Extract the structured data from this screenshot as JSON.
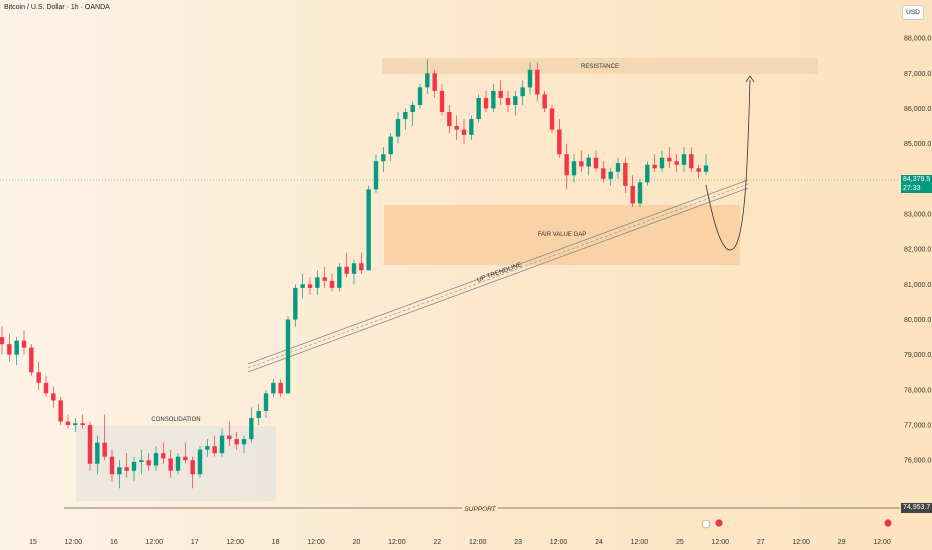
{
  "header": {
    "title": "Bitcoin / U.S. Dollar · 1h · OANDA",
    "currency_button": "USD"
  },
  "colors": {
    "up": "#089981",
    "down": "#f23645",
    "zone": "#f9d2a4",
    "resistance": "#f4d8b3",
    "consolidation": "#ebe6de"
  },
  "price_tags": {
    "current": "84,379.5",
    "countdown": "27:33",
    "support": "74,953.7"
  },
  "annotations": {
    "resistance": "RESISTANCE",
    "fvg": "FAIR VALUE GAP",
    "trendline": "UP TRENDLINE",
    "consolidation": "CONSOLIDATION",
    "support": "SUPPORT"
  },
  "chart_data": {
    "type": "candlestick",
    "title": "Bitcoin / U.S. Dollar · 1h · OANDA",
    "ylim": [
      74300,
      88800
    ],
    "y_ticks": [
      "88,000.0",
      "87,000.0",
      "86,000.0",
      "85,000.0",
      "83,000.0",
      "82,000.0",
      "81,000.0",
      "80,000.0",
      "79,000.0",
      "78,000.0",
      "77,000.0",
      "76,000.0"
    ],
    "y_tick_values": [
      88000,
      87000,
      86000,
      85000,
      83000,
      82000,
      81000,
      80000,
      79000,
      78000,
      77000,
      76000
    ],
    "x_ticks": [
      "15",
      "12:00",
      "16",
      "12:00",
      "17",
      "12:00",
      "18",
      "12:00",
      "20",
      "12:00",
      "22",
      "12:00",
      "23",
      "12:00",
      "24",
      "12:00",
      "25",
      "12:00",
      "27",
      "12:00",
      "29",
      "12:00"
    ],
    "current_price": 84379.5,
    "support_level": 74953.7,
    "resistance_zone": [
      87800,
      88300
    ],
    "fvg_zone": [
      81950,
      83600
    ],
    "series": [
      {
        "values": [
          [
            79500,
            79800,
            79000,
            79300
          ],
          [
            79300,
            79600,
            78800,
            79000
          ],
          [
            79000,
            79500,
            78700,
            79400
          ],
          [
            79400,
            79700,
            79000,
            79200
          ],
          [
            79200,
            79300,
            78400,
            78500
          ],
          [
            78500,
            78800,
            78000,
            78200
          ],
          [
            78200,
            78400,
            77800,
            77900
          ],
          [
            77900,
            78100,
            77500,
            77700
          ],
          [
            77700,
            77800,
            77000,
            77100
          ],
          [
            77100,
            77300,
            76900,
            77000
          ],
          [
            77000,
            77200,
            76800,
            77050
          ],
          [
            77050,
            77300,
            76900,
            77000
          ],
          [
            77000,
            77100,
            75700,
            75900
          ],
          [
            75900,
            76700,
            75600,
            76500
          ],
          [
            76500,
            77300,
            76000,
            76100
          ],
          [
            76100,
            76300,
            75400,
            75600
          ],
          [
            75600,
            76000,
            75200,
            75800
          ],
          [
            75800,
            76200,
            75500,
            75700
          ],
          [
            75700,
            76100,
            75400,
            75950
          ],
          [
            75950,
            76300,
            75600,
            76000
          ],
          [
            76000,
            76200,
            75700,
            75850
          ],
          [
            75850,
            76400,
            75700,
            76200
          ],
          [
            76200,
            76500,
            75900,
            76050
          ],
          [
            76050,
            76300,
            75500,
            75700
          ],
          [
            75700,
            76200,
            75600,
            76100
          ],
          [
            76100,
            76500,
            75900,
            76000
          ],
          [
            76000,
            76100,
            75200,
            75600
          ],
          [
            75600,
            76400,
            75500,
            76300
          ],
          [
            76300,
            76600,
            76100,
            76400
          ],
          [
            76400,
            76700,
            76100,
            76200
          ],
          [
            76200,
            76900,
            76100,
            76700
          ],
          [
            76700,
            77100,
            76400,
            76600
          ],
          [
            76600,
            76800,
            76300,
            76450
          ],
          [
            76450,
            76700,
            76200,
            76600
          ],
          [
            76600,
            77500,
            76500,
            77200
          ],
          [
            77200,
            77600,
            77000,
            77400
          ],
          [
            77400,
            78000,
            77200,
            77900
          ],
          [
            77900,
            78300,
            77800,
            78200
          ],
          [
            78200,
            78300,
            77800,
            77900
          ],
          [
            77900,
            80100,
            77900,
            80000
          ],
          [
            80000,
            81000,
            79800,
            80900
          ],
          [
            80900,
            81300,
            80600,
            81000
          ],
          [
            81000,
            81200,
            80700,
            80900
          ],
          [
            80900,
            81400,
            80700,
            81200
          ],
          [
            81200,
            81500,
            80900,
            81100
          ],
          [
            81100,
            81300,
            80800,
            80900
          ],
          [
            80900,
            81600,
            80800,
            81500
          ],
          [
            81500,
            81900,
            81200,
            81300
          ],
          [
            81300,
            81700,
            81000,
            81600
          ],
          [
            81600,
            81900,
            81300,
            81400
          ],
          [
            81400,
            83800,
            81400,
            83700
          ],
          [
            83700,
            84700,
            83600,
            84500
          ],
          [
            84500,
            84900,
            84200,
            84700
          ],
          [
            84700,
            85300,
            84500,
            85200
          ],
          [
            85200,
            85900,
            85000,
            85700
          ],
          [
            85700,
            86000,
            85400,
            85900
          ],
          [
            85900,
            86200,
            85500,
            86100
          ],
          [
            86100,
            86700,
            86000,
            86600
          ],
          [
            86600,
            87400,
            86400,
            87000
          ],
          [
            87000,
            87100,
            86300,
            86500
          ],
          [
            86500,
            86700,
            85800,
            85900
          ],
          [
            85900,
            86100,
            85300,
            85500
          ],
          [
            85500,
            85800,
            85100,
            85400
          ],
          [
            85400,
            85700,
            85000,
            85250
          ],
          [
            85250,
            85800,
            85100,
            85700
          ],
          [
            85700,
            86400,
            85600,
            86300
          ],
          [
            86300,
            86500,
            85900,
            86000
          ],
          [
            86000,
            86700,
            85900,
            86500
          ],
          [
            86500,
            86800,
            86100,
            86300
          ],
          [
            86300,
            86500,
            85900,
            86100
          ],
          [
            86100,
            86500,
            85800,
            86350
          ],
          [
            86350,
            86800,
            86100,
            86600
          ],
          [
            86600,
            87300,
            86400,
            87100
          ],
          [
            87100,
            87300,
            86200,
            86400
          ],
          [
            86400,
            86500,
            85900,
            86000
          ],
          [
            86000,
            86100,
            85300,
            85400
          ],
          [
            85400,
            85700,
            84600,
            84700
          ],
          [
            84700,
            85000,
            83700,
            84100
          ],
          [
            84100,
            84700,
            83900,
            84500
          ],
          [
            84500,
            84800,
            84200,
            84350
          ],
          [
            84350,
            84700,
            84100,
            84600
          ],
          [
            84600,
            84800,
            84200,
            84300
          ],
          [
            84300,
            84500,
            83900,
            84000
          ],
          [
            84000,
            84300,
            83800,
            84200
          ],
          [
            84200,
            84600,
            84000,
            84450
          ],
          [
            84450,
            84600,
            83600,
            83800
          ],
          [
            83800,
            84100,
            83200,
            83300
          ],
          [
            83300,
            84000,
            83200,
            83900
          ],
          [
            83900,
            84500,
            83800,
            84400
          ],
          [
            84400,
            84700,
            84200,
            84300
          ],
          [
            84300,
            84800,
            84200,
            84600
          ],
          [
            84600,
            84900,
            84300,
            84500
          ],
          [
            84500,
            84700,
            84200,
            84400
          ],
          [
            84400,
            84900,
            84200,
            84700
          ],
          [
            84700,
            84900,
            84200,
            84300
          ],
          [
            84300,
            84400,
            84000,
            84200
          ],
          [
            84200,
            84700,
            84100,
            84380
          ]
        ]
      }
    ],
    "forecast_path": "dip into the Fair Value Gap then rally to resistance"
  }
}
